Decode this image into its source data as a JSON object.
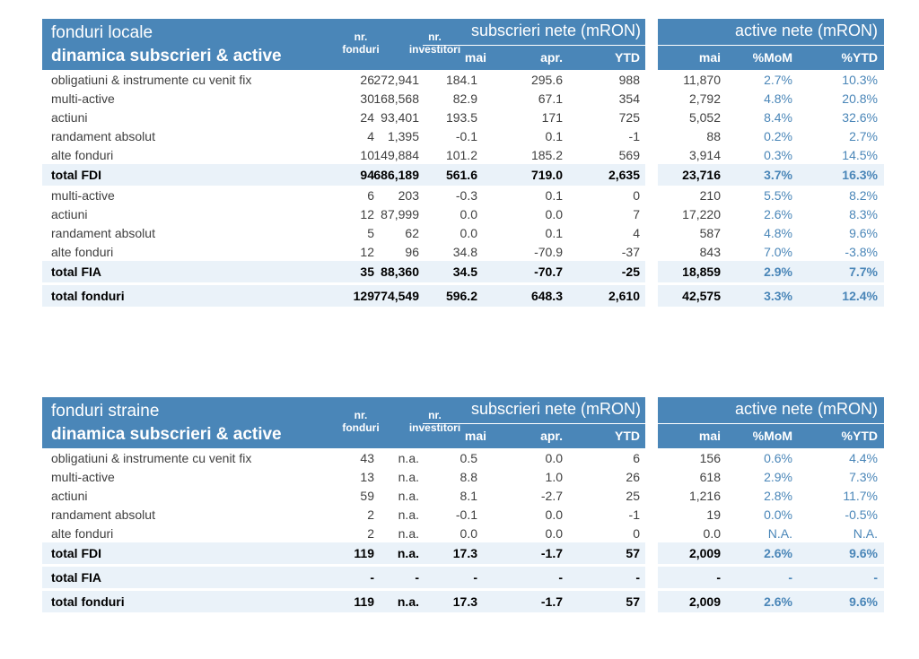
{
  "columns": {
    "nr_fonduri": "nr.\nfonduri",
    "nr_investitori": "nr.\ninvestitori",
    "subscrieri": "subscrieri nete (mRON)",
    "active": "active nete (mRON)",
    "mai": "mai",
    "apr": "apr.",
    "ytd": "YTD",
    "amai": "mai",
    "mom": "%MoM",
    "pytd": "%YTD"
  },
  "tables": [
    {
      "title1": "fonduri locale",
      "title2": "dinamica subscrieri & active",
      "rows": [
        {
          "label": "obligatiuni & instrumente cu venit fix",
          "nf": "26",
          "ni": "272,941",
          "mai": "184.1",
          "apr": "295.6",
          "ytd": "988",
          "amai": "11,870",
          "mom": "2.7%",
          "pytd": "10.3%",
          "total": false
        },
        {
          "label": "multi-active",
          "nf": "30",
          "ni": "168,568",
          "mai": "82.9",
          "apr": "67.1",
          "ytd": "354",
          "amai": "2,792",
          "mom": "4.8%",
          "pytd": "20.8%",
          "total": false
        },
        {
          "label": "actiuni",
          "nf": "24",
          "ni": "93,401",
          "mai": "193.5",
          "apr": "171",
          "ytd": "725",
          "amai": "5,052",
          "mom": "8.4%",
          "pytd": "32.6%",
          "total": false
        },
        {
          "label": "randament absolut",
          "nf": "4",
          "ni": "1,395",
          "mai": "-0.1",
          "apr": "0.1",
          "ytd": "-1",
          "amai": "88",
          "mom": "0.2%",
          "pytd": "2.7%",
          "total": false
        },
        {
          "label": "alte fonduri",
          "nf": "10",
          "ni": "149,884",
          "mai": "101.2",
          "apr": "185.2",
          "ytd": "569",
          "amai": "3,914",
          "mom": "0.3%",
          "pytd": "14.5%",
          "total": false
        },
        {
          "label": "total FDI",
          "nf": "94",
          "ni": "686,189",
          "mai": "561.6",
          "apr": "719.0",
          "ytd": "2,635",
          "amai": "23,716",
          "mom": "3.7%",
          "pytd": "16.3%",
          "total": true
        },
        {
          "label": "multi-active",
          "nf": "6",
          "ni": "203",
          "mai": "-0.3",
          "apr": "0.1",
          "ytd": "0",
          "amai": "210",
          "mom": "5.5%",
          "pytd": "8.2%",
          "total": false
        },
        {
          "label": "actiuni",
          "nf": "12",
          "ni": "87,999",
          "mai": "0.0",
          "apr": "0.0",
          "ytd": "7",
          "amai": "17,220",
          "mom": "2.6%",
          "pytd": "8.3%",
          "total": false
        },
        {
          "label": "randament absolut",
          "nf": "5",
          "ni": "62",
          "mai": "0.0",
          "apr": "0.1",
          "ytd": "4",
          "amai": "587",
          "mom": "4.8%",
          "pytd": "9.6%",
          "total": false
        },
        {
          "label": "alte fonduri",
          "nf": "12",
          "ni": "96",
          "mai": "34.8",
          "apr": "-70.9",
          "ytd": "-37",
          "amai": "843",
          "mom": "7.0%",
          "pytd": "-3.8%",
          "total": false
        },
        {
          "label": "total FIA",
          "nf": "35",
          "ni": "88,360",
          "mai": "34.5",
          "apr": "-70.7",
          "ytd": "-25",
          "amai": "18,859",
          "mom": "2.9%",
          "pytd": "7.7%",
          "total": true
        },
        {
          "label": "total fonduri",
          "nf": "129",
          "ni": "774,549",
          "mai": "596.2",
          "apr": "648.3",
          "ytd": "2,610",
          "amai": "42,575",
          "mom": "3.3%",
          "pytd": "12.4%",
          "total": true
        }
      ]
    },
    {
      "title1": "fonduri straine",
      "title2": "dinamica subscrieri & active",
      "rows": [
        {
          "label": "obligatiuni & instrumente cu venit fix",
          "nf": "43",
          "ni": "n.a.",
          "mai": "0.5",
          "apr": "0.0",
          "ytd": "6",
          "amai": "156",
          "mom": "0.6%",
          "pytd": "4.4%",
          "total": false
        },
        {
          "label": "multi-active",
          "nf": "13",
          "ni": "n.a.",
          "mai": "8.8",
          "apr": "1.0",
          "ytd": "26",
          "amai": "618",
          "mom": "2.9%",
          "pytd": "7.3%",
          "total": false
        },
        {
          "label": "actiuni",
          "nf": "59",
          "ni": "n.a.",
          "mai": "8.1",
          "apr": "-2.7",
          "ytd": "25",
          "amai": "1,216",
          "mom": "2.8%",
          "pytd": "11.7%",
          "total": false
        },
        {
          "label": "randament absolut",
          "nf": "2",
          "ni": "n.a.",
          "mai": "-0.1",
          "apr": "0.0",
          "ytd": "-1",
          "amai": "19",
          "mom": "0.0%",
          "pytd": "-0.5%",
          "total": false
        },
        {
          "label": "alte fonduri",
          "nf": "2",
          "ni": "n.a.",
          "mai": "0.0",
          "apr": "0.0",
          "ytd": "0",
          "amai": "0.0",
          "mom": "N.A.",
          "pytd": "N.A.",
          "total": false
        },
        {
          "label": "total FDI",
          "nf": "119",
          "ni": "n.a.",
          "mai": "17.3",
          "apr": "-1.7",
          "ytd": "57",
          "amai": "2,009",
          "mom": "2.6%",
          "pytd": "9.6%",
          "total": true
        },
        {
          "label": "total FIA",
          "nf": "-",
          "ni": "-",
          "mai": "-",
          "apr": "-",
          "ytd": "-",
          "amai": "-",
          "mom": "-",
          "pytd": "-",
          "total": true
        },
        {
          "label": "total fonduri",
          "nf": "119",
          "ni": "n.a.",
          "mai": "17.3",
          "apr": "-1.7",
          "ytd": "57",
          "amai": "2,009",
          "mom": "2.6%",
          "pytd": "9.6%",
          "total": true
        }
      ]
    }
  ]
}
